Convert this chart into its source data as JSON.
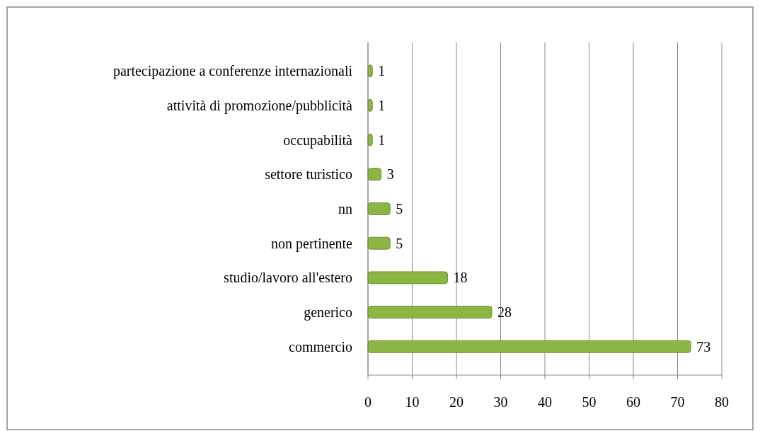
{
  "chart_data": {
    "type": "bar",
    "orientation": "horizontal",
    "categories": [
      "partecipazione a conferenze internazionali",
      "attività di promozione/pubblicità",
      "occupabilità",
      "settore turistico",
      "nn",
      "non pertinente",
      "studio/lavoro all'estero",
      "generico",
      "commercio"
    ],
    "values": [
      1,
      1,
      1,
      3,
      5,
      5,
      18,
      28,
      73
    ],
    "color": "#8db543",
    "xlim": [
      0,
      80
    ],
    "xticks": [
      0,
      10,
      20,
      30,
      40,
      50,
      60,
      70,
      80
    ],
    "grid": "x",
    "data_labels": true
  }
}
